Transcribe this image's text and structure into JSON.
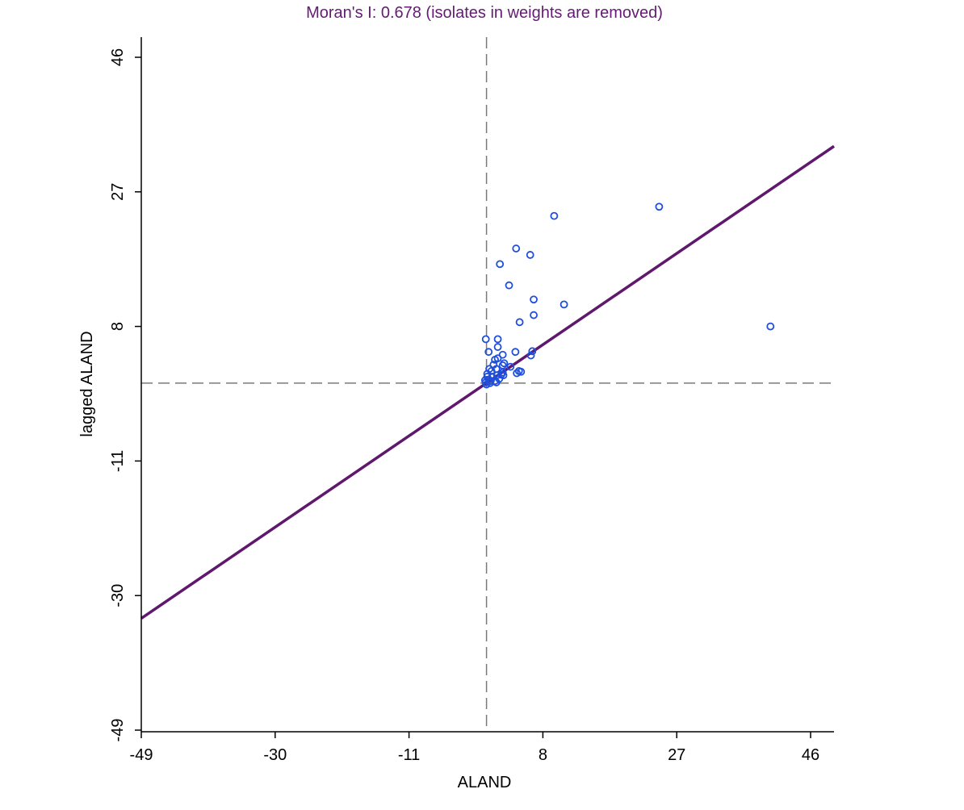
{
  "chart_data": {
    "type": "scatter",
    "title": "Moran's I: 0.678 (isolates in weights are removed)",
    "xlabel": "ALAND",
    "ylabel": "lagged ALAND",
    "xlim": [
      -49,
      49
    ],
    "ylim": [
      -49,
      49
    ],
    "xticks": [
      -49,
      -30,
      -11,
      8,
      27,
      46
    ],
    "yticks": [
      -49,
      -30,
      -11,
      8,
      27,
      46
    ],
    "reference_lines": {
      "x_mean": 0,
      "y_mean": 0,
      "style": "dashed"
    },
    "regression_line": {
      "slope": 0.678,
      "intercept": 0
    },
    "points": [
      [
        9.6,
        23.6
      ],
      [
        24.5,
        24.9
      ],
      [
        4.2,
        19.0
      ],
      [
        6.2,
        18.1
      ],
      [
        1.9,
        16.8
      ],
      [
        3.2,
        13.8
      ],
      [
        6.7,
        11.8
      ],
      [
        11.0,
        11.1
      ],
      [
        6.7,
        9.6
      ],
      [
        4.7,
        8.6
      ],
      [
        -0.1,
        6.2
      ],
      [
        1.6,
        6.2
      ],
      [
        1.6,
        5.1
      ],
      [
        4.1,
        4.4
      ],
      [
        6.5,
        4.5
      ],
      [
        6.3,
        3.9
      ],
      [
        0.3,
        4.4
      ],
      [
        2.3,
        4.0
      ],
      [
        1.6,
        3.5
      ],
      [
        1.2,
        3.3
      ],
      [
        2.5,
        2.8
      ],
      [
        1.0,
        2.6
      ],
      [
        3.4,
        2.3
      ],
      [
        2.3,
        2.5
      ],
      [
        0.4,
        2.0
      ],
      [
        1.4,
        2.0
      ],
      [
        0.7,
        1.7
      ],
      [
        2.3,
        1.5
      ],
      [
        4.6,
        1.7
      ],
      [
        4.9,
        1.6
      ],
      [
        4.3,
        1.4
      ],
      [
        2.4,
        1.1
      ],
      [
        2.1,
        1.2
      ],
      [
        0.1,
        1.3
      ],
      [
        1.5,
        1.1
      ],
      [
        0.1,
        0.9
      ],
      [
        1.8,
        0.6
      ],
      [
        1.2,
        0.3
      ],
      [
        0.6,
        0.3
      ],
      [
        0.5,
        0.0
      ],
      [
        0.0,
        -0.2
      ],
      [
        1.4,
        0.1
      ],
      [
        0.3,
        0.5
      ],
      [
        0.8,
        0.9
      ],
      [
        40.3,
        8.0
      ],
      [
        -0.2,
        0.4
      ],
      [
        -0.1,
        0.1
      ]
    ],
    "colors": {
      "title": "#651a74",
      "points": "#1f4fdb",
      "regression": "#5f186e",
      "reference": "#7a7a7a"
    },
    "grid": false,
    "legend": "none"
  }
}
